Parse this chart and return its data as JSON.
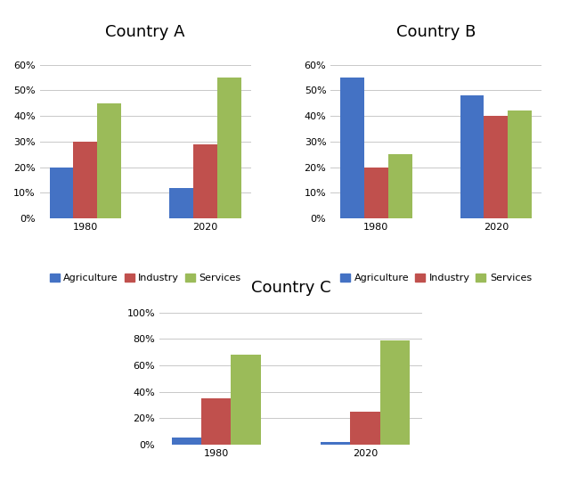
{
  "country_a": {
    "title": "Country A",
    "years": [
      "1980",
      "2020"
    ],
    "agriculture": [
      0.2,
      0.12
    ],
    "industry": [
      0.3,
      0.29
    ],
    "services": [
      0.45,
      0.55
    ],
    "ylim": [
      0,
      0.68
    ],
    "yticks": [
      0,
      0.1,
      0.2,
      0.3,
      0.4,
      0.5,
      0.6
    ],
    "ytick_labels": [
      "0%",
      "10%",
      "20%",
      "30%",
      "40%",
      "50%",
      "60%"
    ]
  },
  "country_b": {
    "title": "Country B",
    "years": [
      "1980",
      "2020"
    ],
    "agriculture": [
      0.55,
      0.48
    ],
    "industry": [
      0.2,
      0.4
    ],
    "services": [
      0.25,
      0.42
    ],
    "ylim": [
      0,
      0.68
    ],
    "yticks": [
      0,
      0.1,
      0.2,
      0.3,
      0.4,
      0.5,
      0.6
    ],
    "ytick_labels": [
      "0%",
      "10%",
      "20%",
      "30%",
      "40%",
      "50%",
      "60%"
    ]
  },
  "country_c": {
    "title": "Country C",
    "years": [
      "1980",
      "2020"
    ],
    "agriculture": [
      0.05,
      0.02
    ],
    "industry": [
      0.35,
      0.25
    ],
    "services": [
      0.68,
      0.79
    ],
    "ylim": [
      0,
      1.1
    ],
    "yticks": [
      0,
      0.2,
      0.4,
      0.6,
      0.8,
      1.0
    ],
    "ytick_labels": [
      "0%",
      "20%",
      "40%",
      "60%",
      "80%",
      "100%"
    ]
  },
  "colors": {
    "agriculture": "#4472C4",
    "industry": "#C0504D",
    "services": "#9BBB59"
  },
  "legend_labels": [
    "Agriculture",
    "Industry",
    "Services"
  ],
  "bar_width": 0.2,
  "title_fontsize": 13,
  "tick_fontsize": 8,
  "legend_fontsize": 8,
  "background_color": "#FFFFFF",
  "grid_color": "#C8C8C8",
  "box_color": "#BBBBBB"
}
